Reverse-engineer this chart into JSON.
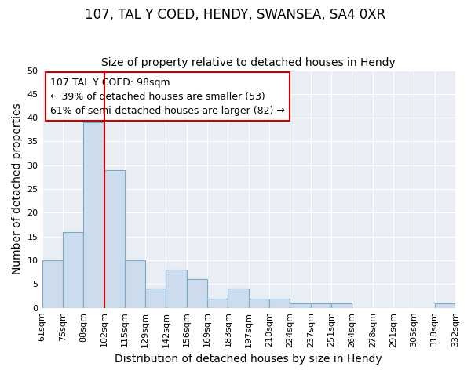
{
  "title": "107, TAL Y COED, HENDY, SWANSEA, SA4 0XR",
  "subtitle": "Size of property relative to detached houses in Hendy",
  "xlabel": "Distribution of detached houses by size in Hendy",
  "ylabel": "Number of detached properties",
  "bar_values": [
    10,
    16,
    39,
    29,
    10,
    4,
    8,
    6,
    2,
    4,
    2,
    2,
    1,
    1,
    1,
    0,
    0,
    0,
    0,
    1
  ],
  "bin_labels": [
    "61sqm",
    "75sqm",
    "88sqm",
    "102sqm",
    "115sqm",
    "129sqm",
    "142sqm",
    "156sqm",
    "169sqm",
    "183sqm",
    "197sqm",
    "210sqm",
    "224sqm",
    "237sqm",
    "251sqm",
    "264sqm",
    "278sqm",
    "291sqm",
    "305sqm",
    "318sqm",
    "332sqm"
  ],
  "bar_color": "#cddcec",
  "bar_edge_color": "#7aaac8",
  "annotation_text": "107 TAL Y COED: 98sqm\n← 39% of detached houses are smaller (53)\n61% of semi-detached houses are larger (82) →",
  "annotation_box_color": "#ffffff",
  "annotation_box_edge": "#cc0000",
  "red_line_color": "#cc0000",
  "ylim": [
    0,
    50
  ],
  "yticks": [
    0,
    5,
    10,
    15,
    20,
    25,
    30,
    35,
    40,
    45,
    50
  ],
  "background_color": "#ffffff",
  "plot_bg_color": "#e8eef4",
  "grid_color": "#ffffff",
  "title_fontsize": 12,
  "subtitle_fontsize": 10,
  "axis_label_fontsize": 10,
  "tick_fontsize": 8,
  "annotation_fontsize": 9,
  "footer_fontsize": 7.5
}
